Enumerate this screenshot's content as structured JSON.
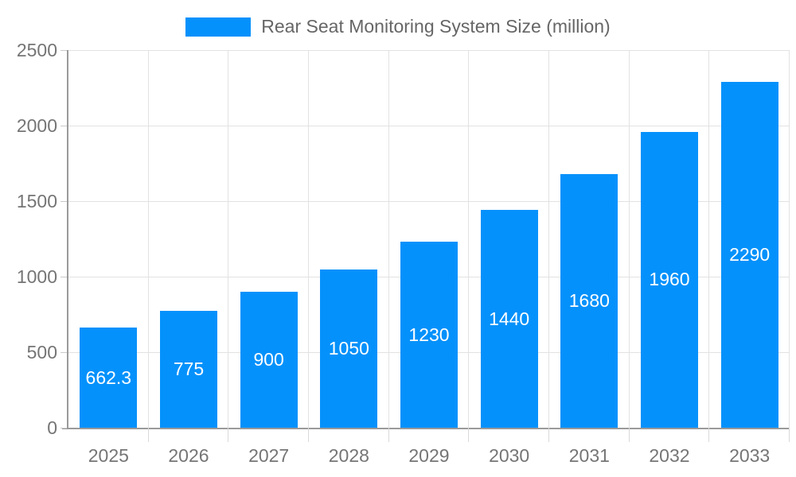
{
  "legend": {
    "label": "Rear Seat Monitoring System Size (million)"
  },
  "colors": {
    "bar": "#0591FB",
    "grid": "#e2e2e2",
    "axis": "#9a9a9a",
    "tick": "#d9d9d9",
    "axis_text": "#757575",
    "legend_text": "#666666",
    "bar_label_text": "#ffffff",
    "background": "#ffffff"
  },
  "chart_data": {
    "type": "bar",
    "title": "Rear Seat Monitoring System Size (million)",
    "categories": [
      "2025",
      "2026",
      "2027",
      "2028",
      "2029",
      "2030",
      "2031",
      "2032",
      "2033"
    ],
    "values": [
      662.3,
      775,
      900,
      1050,
      1230,
      1440,
      1680,
      1960,
      2290
    ],
    "value_labels": [
      "662.3",
      "775",
      "900",
      "1050",
      "1230",
      "1440",
      "1680",
      "1960",
      "2290"
    ],
    "xlabel": "",
    "ylabel": "",
    "ylim": [
      0,
      2500
    ],
    "yticks": [
      0,
      500,
      1000,
      1500,
      2000,
      2500
    ],
    "grid": true,
    "legend_position": "top-center",
    "value_label_position": "inside-center"
  }
}
